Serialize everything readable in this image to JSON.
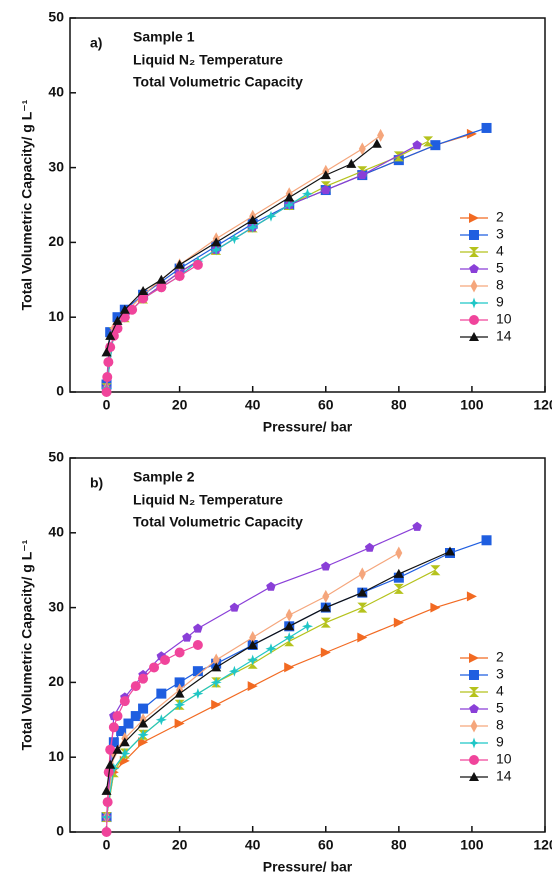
{
  "chart_data": [
    {
      "type": "line",
      "panel_label": "a)",
      "title": "Sample 1",
      "notes": [
        "Liquid N₂ Temperature",
        "Total Volumetric Capacity"
      ],
      "x_label": "Pressure/ bar",
      "y_label": "Total Volumetric Capacity/ g L⁻¹",
      "xlim": [
        -10,
        120
      ],
      "ylim": [
        0,
        50
      ],
      "xticks": [
        0,
        20,
        40,
        60,
        80,
        100,
        120
      ],
      "yticks": [
        0,
        10,
        20,
        30,
        40,
        50
      ],
      "series": [
        {
          "name": "2",
          "color": "#f26a22",
          "marker": "triangle-right",
          "x": [
            0,
            2,
            5,
            10,
            20,
            30,
            40,
            50,
            60,
            70,
            80,
            90,
            100
          ],
          "values": [
            1,
            8,
            10,
            12.5,
            16,
            19,
            22,
            25,
            27,
            29,
            31,
            33,
            34.5
          ]
        },
        {
          "name": "3",
          "color": "#1f5ee0",
          "marker": "square",
          "x": [
            0,
            1,
            3,
            5,
            10,
            20,
            30,
            40,
            50,
            60,
            70,
            80,
            90,
            104
          ],
          "values": [
            1,
            8,
            10,
            11,
            13,
            16.5,
            19.5,
            22.5,
            25,
            27,
            29,
            31,
            33,
            35.3
          ]
        },
        {
          "name": "4",
          "color": "#b5c21c",
          "marker": "hourglass",
          "x": [
            0,
            2,
            5,
            10,
            20,
            30,
            40,
            50,
            60,
            70,
            80,
            88
          ],
          "values": [
            0.5,
            8,
            10,
            12.5,
            16,
            19,
            22,
            25,
            27.5,
            29.5,
            31.5,
            33.5
          ]
        },
        {
          "name": "5",
          "color": "#8a3fd8",
          "marker": "pentagon",
          "x": [
            0,
            2,
            5,
            10,
            20,
            30,
            40,
            50,
            60,
            70,
            85
          ],
          "values": [
            0.5,
            8,
            10,
            12.5,
            16,
            19,
            22,
            25,
            27,
            29,
            33
          ]
        },
        {
          "name": "8",
          "color": "#f5a67c",
          "marker": "diamond",
          "x": [
            0,
            2,
            5,
            10,
            20,
            30,
            40,
            50,
            60,
            70,
            75
          ],
          "values": [
            0.5,
            8.5,
            10.5,
            13,
            17,
            20.5,
            23.5,
            26.5,
            29.5,
            32.5,
            34.3
          ]
        },
        {
          "name": "9",
          "color": "#1fc6c6",
          "marker": "star",
          "x": [
            0,
            2,
            5,
            10,
            15,
            20,
            25,
            30,
            35,
            40,
            45,
            50,
            55
          ],
          "values": [
            0.5,
            8,
            10,
            12.5,
            14,
            15.5,
            17.5,
            19,
            20.5,
            22,
            23.5,
            25,
            26.5
          ]
        },
        {
          "name": "10",
          "color": "#f0449b",
          "marker": "circle",
          "x": [
            0,
            0.2,
            0.5,
            1,
            2,
            3,
            5,
            7,
            10,
            15,
            20,
            25
          ],
          "values": [
            0,
            2,
            4,
            6,
            7.5,
            8.5,
            10,
            11,
            12.5,
            14,
            15.5,
            17
          ]
        },
        {
          "name": "14",
          "color": "#111111",
          "marker": "triangle-up",
          "x": [
            0,
            1,
            3,
            5,
            10,
            15,
            20,
            30,
            40,
            50,
            60,
            67,
            74
          ],
          "values": [
            5.3,
            7.5,
            9.5,
            11,
            13.5,
            15,
            17,
            20,
            23,
            26,
            29,
            30.5,
            33.2
          ]
        }
      ]
    },
    {
      "type": "line",
      "panel_label": "b)",
      "title": "Sample 2",
      "notes": [
        "Liquid N₂ Temperature",
        "Total Volumetric Capacity"
      ],
      "x_label": "Pressure/ bar",
      "y_label": "Total Volumetric Capacity/ g L⁻¹",
      "xlim": [
        -10,
        120
      ],
      "ylim": [
        0,
        50
      ],
      "xticks": [
        0,
        20,
        40,
        60,
        80,
        100,
        120
      ],
      "yticks": [
        0,
        10,
        20,
        30,
        40,
        50
      ],
      "series": [
        {
          "name": "2",
          "color": "#f26a22",
          "marker": "triangle-right",
          "x": [
            0,
            2,
            5,
            10,
            20,
            30,
            40,
            50,
            60,
            70,
            80,
            90,
            100
          ],
          "values": [
            2,
            8,
            9.5,
            12,
            14.5,
            17,
            19.5,
            22,
            24,
            26,
            28,
            30,
            31.5
          ]
        },
        {
          "name": "3",
          "color": "#1f5ee0",
          "marker": "square",
          "x": [
            0,
            2,
            4,
            6,
            8,
            10,
            15,
            20,
            25,
            30,
            40,
            50,
            60,
            70,
            80,
            94,
            104
          ],
          "values": [
            2,
            12,
            13.5,
            14.5,
            15.5,
            16.5,
            18.5,
            20,
            21.5,
            22.5,
            25,
            27.5,
            30,
            32,
            34,
            37.3,
            39
          ]
        },
        {
          "name": "4",
          "color": "#b5c21c",
          "marker": "hourglass",
          "x": [
            0,
            2,
            5,
            10,
            20,
            30,
            40,
            50,
            60,
            70,
            80,
            90
          ],
          "values": [
            2,
            8,
            10.5,
            13,
            17,
            20,
            22.5,
            25.5,
            28,
            30,
            32.5,
            35
          ]
        },
        {
          "name": "5",
          "color": "#8a3fd8",
          "marker": "pentagon",
          "x": [
            0,
            2,
            5,
            10,
            15,
            22,
            25,
            35,
            45,
            60,
            72,
            85
          ],
          "values": [
            2,
            15.5,
            18,
            21,
            23.5,
            26,
            27.2,
            30,
            32.8,
            35.5,
            38,
            40.8
          ]
        },
        {
          "name": "8",
          "color": "#f5a67c",
          "marker": "diamond",
          "x": [
            0,
            2,
            5,
            10,
            20,
            30,
            40,
            50,
            60,
            70,
            80
          ],
          "values": [
            2,
            10.5,
            12.5,
            15,
            19,
            23,
            26,
            29,
            31.5,
            34.5,
            37.3
          ]
        },
        {
          "name": "9",
          "color": "#1fc6c6",
          "marker": "star",
          "x": [
            0,
            2,
            5,
            10,
            15,
            20,
            25,
            30,
            35,
            40,
            45,
            50,
            55
          ],
          "values": [
            2,
            8.5,
            10.5,
            13,
            15,
            17,
            18.5,
            20,
            21.5,
            23,
            24.5,
            26,
            27.5
          ]
        },
        {
          "name": "10",
          "color": "#f0449b",
          "marker": "circle",
          "x": [
            0,
            0.3,
            0.6,
            1,
            2,
            3,
            5,
            8,
            10,
            13,
            16,
            20,
            25
          ],
          "values": [
            0,
            4,
            8,
            11,
            14,
            15.5,
            17.5,
            19.5,
            20.5,
            22,
            23,
            24,
            25
          ]
        },
        {
          "name": "14",
          "color": "#111111",
          "marker": "triangle-up",
          "x": [
            0,
            1,
            3,
            5,
            10,
            20,
            30,
            40,
            50,
            60,
            70,
            80,
            94
          ],
          "values": [
            5.5,
            9,
            11,
            12,
            14.5,
            18.5,
            22,
            25,
            27.5,
            30,
            32,
            34.5,
            37.5
          ]
        }
      ]
    }
  ]
}
